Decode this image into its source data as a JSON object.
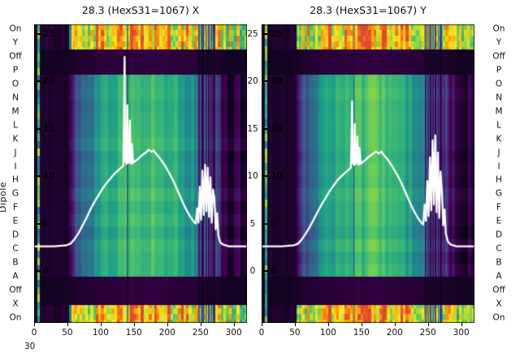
{
  "figure": {
    "y_axis_label": "Dipole",
    "corner_label": "30",
    "row_labels": [
      "On",
      "Y",
      "Off",
      "P",
      "O",
      "N",
      "M",
      "L",
      "K",
      "J",
      "I",
      "H",
      "G",
      "F",
      "E",
      "D",
      "C",
      "B",
      "A",
      "Off",
      "X",
      "On"
    ],
    "inner_ticks": [
      25,
      20,
      15,
      10,
      5,
      0
    ],
    "x_ticks": [
      0,
      50,
      100,
      150,
      200,
      250,
      300
    ],
    "x_range": [
      0,
      320
    ],
    "value_range": [
      0,
      25
    ],
    "line_color": "#ffffff",
    "colormap_stops": [
      [
        0,
        "#060415"
      ],
      [
        0.12,
        "#440154"
      ],
      [
        0.25,
        "#46327e"
      ],
      [
        0.35,
        "#365c8d"
      ],
      [
        0.45,
        "#277f8e"
      ],
      [
        0.55,
        "#1fa187"
      ],
      [
        0.68,
        "#4ac16d"
      ],
      [
        0.8,
        "#a0da39"
      ],
      [
        0.92,
        "#fde725"
      ],
      [
        1.05,
        "#fca50a"
      ],
      [
        1.21,
        "#e1492f"
      ]
    ]
  },
  "chart_data": [
    {
      "type": "heatmap",
      "title": "28.3 (HexS31=1067) X",
      "xlabel": "",
      "ylabel": "Dipole",
      "x_ticks": [
        0,
        50,
        100,
        150,
        200,
        250,
        300
      ],
      "inner_ticks": [
        25,
        20,
        15,
        10,
        5,
        0
      ],
      "line": {
        "name": "white-profile-overlay",
        "x": [
          0,
          30,
          48,
          55,
          60,
          66,
          72,
          78,
          84,
          90,
          96,
          102,
          108,
          114,
          120,
          126,
          131,
          134,
          135,
          136,
          137,
          139,
          140,
          141,
          142,
          144,
          145,
          146,
          147,
          149,
          152,
          156,
          160,
          164,
          168,
          172,
          176,
          180,
          184,
          188,
          192,
          196,
          200,
          205,
          210,
          215,
          220,
          225,
          230,
          235,
          240,
          243,
          245,
          247,
          249,
          251,
          253,
          255,
          257,
          259,
          261,
          263,
          265,
          267,
          269,
          271,
          273,
          275,
          277,
          280,
          284,
          288,
          293,
          300,
          310,
          320
        ],
        "y": [
          2.6,
          2.6,
          2.7,
          2.9,
          3.3,
          3.9,
          4.7,
          5.5,
          6.4,
          7.2,
          7.9,
          8.6,
          9.2,
          9.7,
          10.2,
          10.6,
          10.9,
          11.1,
          16.0,
          22.6,
          11.6,
          11.3,
          17.5,
          12.0,
          11.4,
          15.9,
          11.6,
          11.3,
          13.4,
          11.4,
          11.6,
          11.8,
          12.1,
          12.3,
          12.5,
          12.8,
          12.6,
          12.7,
          12.3,
          12.0,
          11.6,
          11.2,
          10.7,
          10.1,
          9.4,
          8.6,
          7.8,
          7.0,
          6.3,
          5.7,
          5.2,
          5.0,
          6.6,
          5.1,
          8.9,
          5.4,
          10.6,
          5.9,
          11.2,
          6.3,
          10.9,
          5.7,
          9.9,
          5.1,
          8.6,
          7.7,
          4.4,
          6.1,
          3.7,
          3.0,
          2.8,
          2.7,
          2.6,
          2.6,
          2.6,
          2.6
        ]
      },
      "heatmap": {
        "seed": 3.1,
        "main_profile": [
          [
            0,
            0.04
          ],
          [
            8,
            0.05
          ],
          [
            45,
            0.05
          ],
          [
            55,
            0.18
          ],
          [
            65,
            0.32
          ],
          [
            80,
            0.42
          ],
          [
            95,
            0.5
          ],
          [
            110,
            0.56
          ],
          [
            125,
            0.6
          ],
          [
            140,
            0.63
          ],
          [
            155,
            0.66
          ],
          [
            170,
            0.68
          ],
          [
            185,
            0.66
          ],
          [
            200,
            0.62
          ],
          [
            215,
            0.58
          ],
          [
            230,
            0.52
          ],
          [
            242,
            0.46
          ],
          [
            252,
            0.4
          ],
          [
            262,
            0.36
          ],
          [
            272,
            0.3
          ],
          [
            280,
            0.18
          ],
          [
            288,
            0.1
          ],
          [
            296,
            0.08
          ],
          [
            310,
            0.07
          ],
          [
            320,
            0.06
          ]
        ],
        "bright_profile": [
          [
            0,
            0.04
          ],
          [
            48,
            0.05
          ],
          [
            54,
            0.6
          ],
          [
            60,
            0.85
          ],
          [
            80,
            0.95
          ],
          [
            120,
            1.0
          ],
          [
            160,
            1.02
          ],
          [
            200,
            0.98
          ],
          [
            240,
            0.95
          ],
          [
            270,
            0.9
          ],
          [
            290,
            0.85
          ],
          [
            305,
            0.8
          ],
          [
            320,
            0.72
          ]
        ],
        "streaks": [
          [
            140,
            1.5,
            0.55
          ],
          [
            247,
            1.2,
            0.35
          ],
          [
            251,
            1.0,
            0.55
          ],
          [
            254,
            1.2,
            0.25
          ],
          [
            258,
            1.0,
            0.5
          ],
          [
            262,
            1.4,
            0.3
          ],
          [
            266,
            1.0,
            0.55
          ],
          [
            270,
            1.6,
            0.35
          ]
        ],
        "bright_line_x": 6
      }
    },
    {
      "type": "heatmap",
      "title": "28.3 (HexS31=1067) Y",
      "xlabel": "",
      "ylabel": "Dipole",
      "x_ticks": [
        0,
        50,
        100,
        150,
        200,
        250,
        300
      ],
      "inner_ticks": [
        25,
        20,
        15,
        10,
        5,
        0
      ],
      "line": {
        "name": "white-profile-overlay",
        "x": [
          0,
          30,
          48,
          55,
          60,
          66,
          72,
          78,
          84,
          90,
          96,
          102,
          108,
          114,
          120,
          126,
          131,
          134,
          135,
          136,
          137,
          139,
          140,
          141,
          142,
          144,
          145,
          146,
          147,
          149,
          152,
          156,
          160,
          164,
          168,
          172,
          176,
          180,
          184,
          188,
          192,
          196,
          200,
          205,
          210,
          215,
          220,
          225,
          230,
          235,
          240,
          243,
          245,
          247,
          249,
          251,
          253,
          255,
          257,
          259,
          261,
          263,
          265,
          267,
          269,
          271,
          273,
          275,
          277,
          280,
          284,
          288,
          293,
          300,
          310,
          320
        ],
        "y": [
          2.6,
          2.6,
          2.7,
          2.9,
          3.3,
          3.9,
          4.6,
          5.4,
          6.2,
          7.0,
          7.7,
          8.4,
          9.0,
          9.6,
          10.0,
          10.4,
          10.7,
          10.9,
          13.5,
          17.9,
          11.4,
          11.2,
          15.5,
          11.8,
          11.3,
          14.2,
          11.5,
          11.2,
          13.0,
          11.3,
          11.5,
          11.7,
          12.0,
          12.2,
          12.4,
          12.6,
          12.4,
          12.6,
          12.2,
          11.9,
          11.5,
          11.1,
          10.6,
          10.0,
          9.3,
          8.5,
          7.7,
          6.9,
          6.2,
          5.6,
          5.1,
          4.9,
          7.0,
          5.3,
          9.5,
          5.8,
          12.0,
          6.4,
          13.8,
          7.0,
          14.3,
          6.2,
          12.5,
          5.6,
          10.5,
          8.5,
          4.8,
          6.5,
          3.9,
          3.1,
          2.8,
          2.7,
          2.6,
          2.6,
          2.6,
          2.6
        ]
      },
      "heatmap": {
        "seed": 7.7,
        "main_profile": [
          [
            0,
            0.04
          ],
          [
            8,
            0.05
          ],
          [
            45,
            0.05
          ],
          [
            55,
            0.18
          ],
          [
            65,
            0.32
          ],
          [
            80,
            0.42
          ],
          [
            95,
            0.5
          ],
          [
            110,
            0.56
          ],
          [
            125,
            0.6
          ],
          [
            140,
            0.63
          ],
          [
            155,
            0.66
          ],
          [
            170,
            0.68
          ],
          [
            185,
            0.66
          ],
          [
            200,
            0.62
          ],
          [
            215,
            0.58
          ],
          [
            230,
            0.52
          ],
          [
            242,
            0.46
          ],
          [
            252,
            0.4
          ],
          [
            262,
            0.36
          ],
          [
            272,
            0.3
          ],
          [
            280,
            0.18
          ],
          [
            288,
            0.1
          ],
          [
            296,
            0.08
          ],
          [
            310,
            0.07
          ],
          [
            320,
            0.06
          ]
        ],
        "bright_profile": [
          [
            0,
            0.04
          ],
          [
            48,
            0.05
          ],
          [
            54,
            0.6
          ],
          [
            60,
            0.85
          ],
          [
            80,
            0.95
          ],
          [
            120,
            1.0
          ],
          [
            160,
            1.02
          ],
          [
            200,
            0.98
          ],
          [
            240,
            0.95
          ],
          [
            270,
            0.9
          ],
          [
            290,
            0.85
          ],
          [
            305,
            0.8
          ],
          [
            320,
            0.72
          ]
        ],
        "streaks": [
          [
            138,
            1.2,
            0.6
          ],
          [
            246,
            1.2,
            0.4
          ],
          [
            250,
            1.0,
            0.5
          ],
          [
            253,
            1.2,
            0.3
          ],
          [
            257,
            1.0,
            0.45
          ],
          [
            261,
            1.4,
            0.35
          ],
          [
            265,
            1.0,
            0.5
          ],
          [
            269,
            1.6,
            0.4
          ]
        ],
        "bright_line_x": 6
      }
    }
  ]
}
